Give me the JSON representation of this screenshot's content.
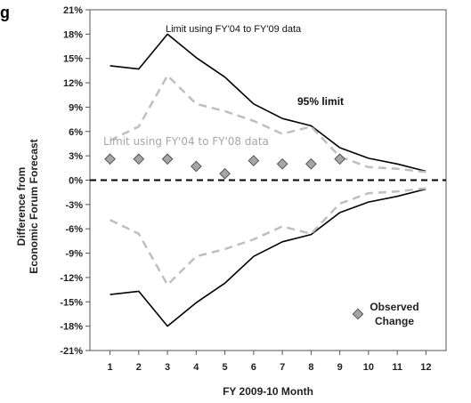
{
  "corner_text": "g",
  "chart_data": {
    "type": "line",
    "xlabel": "FY 2009-10 Month",
    "ylabel_lines": [
      "Difference from",
      "Economic Forum Forecast"
    ],
    "x": [
      1,
      2,
      3,
      4,
      5,
      6,
      7,
      8,
      9,
      10,
      11,
      12
    ],
    "ylim": [
      -21,
      21
    ],
    "xlim": [
      0.3,
      12.7
    ],
    "y_ticks": [
      21,
      18,
      15,
      12,
      9,
      6,
      3,
      0,
      -3,
      -6,
      -9,
      -12,
      -15,
      -18,
      -21
    ],
    "y_tick_suffix": "%",
    "grid": false,
    "series": [
      {
        "name": "Limit using FY'04 to FY'09 data",
        "style": "solid",
        "color": "#000000",
        "upper": [
          14.1,
          13.7,
          18.0,
          15.1,
          12.7,
          9.4,
          7.6,
          6.7,
          4.0,
          2.7,
          2.0,
          1.1
        ],
        "lower": [
          -14.1,
          -13.7,
          -18.0,
          -15.1,
          -12.7,
          -9.4,
          -7.6,
          -6.7,
          -4.0,
          -2.7,
          -2.0,
          -1.1
        ]
      },
      {
        "name": "Limit using FY'04 to FY'08 data",
        "style": "dashed",
        "color": "#bfbfbf",
        "upper": [
          4.9,
          6.6,
          12.9,
          9.4,
          8.5,
          7.3,
          5.7,
          6.6,
          2.9,
          1.6,
          1.4,
          1.0
        ],
        "lower": [
          -4.9,
          -6.6,
          -12.9,
          -9.4,
          -8.5,
          -7.3,
          -5.7,
          -6.6,
          -2.9,
          -1.6,
          -1.4,
          -1.0
        ]
      },
      {
        "name": "Observed Change",
        "style": "markers",
        "color": "#a6a6a6",
        "x": [
          1,
          2,
          3,
          4,
          5,
          6,
          7,
          8,
          9
        ],
        "values": [
          2.6,
          2.6,
          2.6,
          1.7,
          0.8,
          2.4,
          2.0,
          2.0,
          2.6
        ]
      }
    ],
    "zero_line": "dashed",
    "annotations": {
      "limit_0409": "Limit using FY'04 to FY'09 data",
      "limit_0408": "Limit using FY'04 to FY'08 data",
      "pct95": "95% limit"
    },
    "legend": {
      "position": "bottom-right",
      "label_lines": [
        "Observed",
        "Change"
      ]
    },
    "colors": {
      "solid_line": "#000000",
      "dashed_line": "#bfbfbf",
      "marker_fill": "#a6a6a6",
      "marker_stroke": "#555555",
      "axis": "#555555"
    }
  }
}
